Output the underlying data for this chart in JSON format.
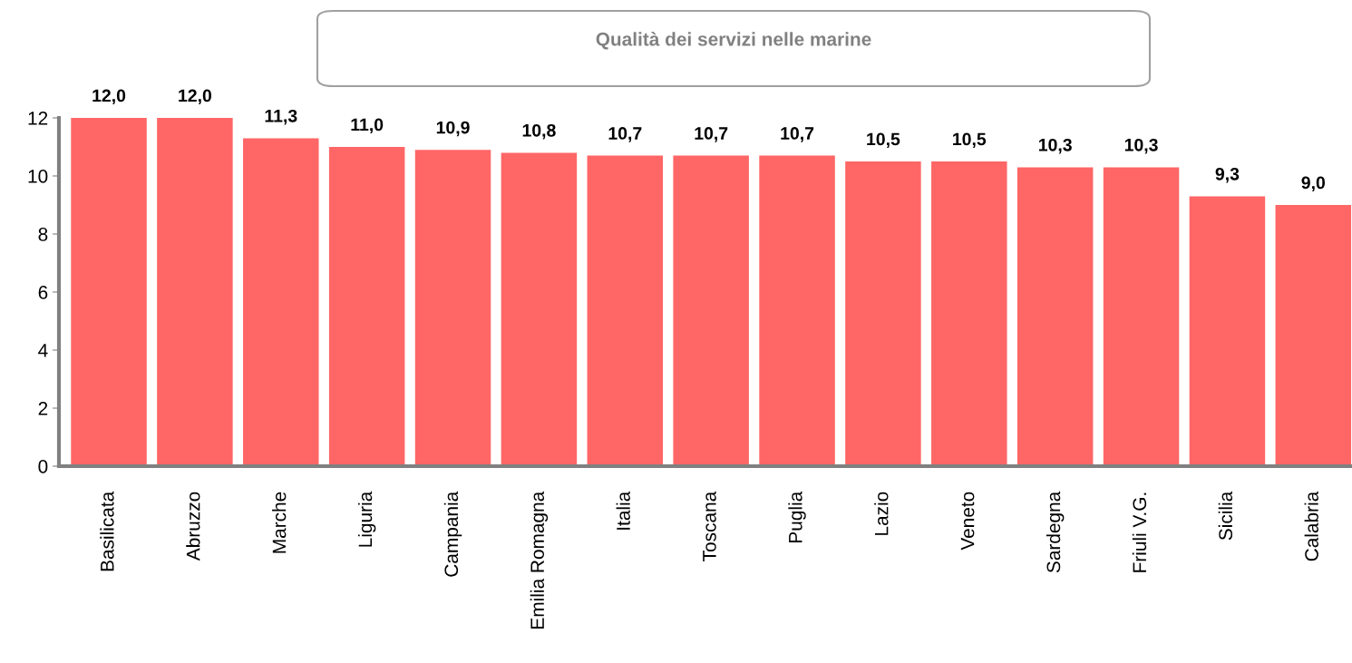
{
  "chart_data": {
    "type": "bar",
    "title": "Qualità dei servizi nelle marine",
    "categories": [
      "Basilicata",
      "Abruzzo",
      "Marche",
      "Liguria",
      "Campania",
      "Emilia Romagna",
      "Italia",
      "Toscana",
      "Puglia",
      "Lazio",
      "Veneto",
      "Sardegna",
      "Friuli V.G.",
      "Sicilia",
      "Calabria"
    ],
    "values": [
      12.0,
      12.0,
      11.3,
      11.0,
      10.9,
      10.8,
      10.7,
      10.7,
      10.7,
      10.5,
      10.5,
      10.3,
      10.3,
      9.3,
      9.0
    ],
    "value_labels": [
      "12,0",
      "12,0",
      "11,3",
      "11,0",
      "10,9",
      "10,8",
      "10,7",
      "10,7",
      "10,7",
      "10,5",
      "10,5",
      "10,3",
      "10,3",
      "9,3",
      "9,0"
    ],
    "color": "#ff6666",
    "ylim": [
      0,
      12
    ],
    "yticks": [
      0,
      2,
      4,
      6,
      8,
      10,
      12
    ],
    "grid": false,
    "legend": false
  }
}
